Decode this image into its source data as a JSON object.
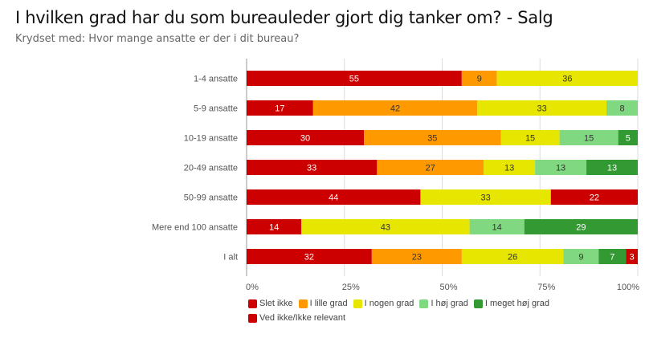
{
  "header": {
    "title": "I hvilken grad har du som bureauleder gjort dig tanker om? - Salg",
    "subtitle": "Krydset med: Hvor mange ansatte er der i dit bureau?"
  },
  "chart_data": {
    "type": "bar",
    "orientation": "horizontal",
    "stacked": true,
    "normalized_percent": true,
    "title": "I hvilken grad har du som bureauleder gjort dig tanker om? - Salg",
    "subtitle": "Krydset med: Hvor mange ansatte er der i dit bureau?",
    "xlabel": "",
    "ylabel": "",
    "xlim": [
      0,
      100
    ],
    "x_ticks": [
      "0%",
      "25%",
      "50%",
      "75%",
      "100%"
    ],
    "grid": true,
    "legend_position": "bottom",
    "categories": [
      "1-4 ansatte",
      "5-9 ansatte",
      "10-19 ansatte",
      "20-49 ansatte",
      "50-99 ansatte",
      "Mere end 100 ansatte",
      "I alt"
    ],
    "series": [
      {
        "name": "Slet ikke",
        "color": "#cc0000",
        "label_color": "#ffffff",
        "values": [
          55,
          17,
          30,
          33,
          44,
          14,
          32
        ]
      },
      {
        "name": "I lille grad",
        "color": "#ff9900",
        "label_color": "#333333",
        "values": [
          9,
          42,
          35,
          27,
          0,
          0,
          23
        ]
      },
      {
        "name": "I nogen grad",
        "color": "#e6e600",
        "label_color": "#333333",
        "values": [
          36,
          33,
          15,
          13,
          33,
          43,
          26
        ]
      },
      {
        "name": "I høj grad",
        "color": "#80d980",
        "label_color": "#333333",
        "values": [
          0,
          8,
          15,
          13,
          0,
          14,
          9
        ]
      },
      {
        "name": "I meget høj grad",
        "color": "#339933",
        "label_color": "#ffffff",
        "values": [
          0,
          0,
          5,
          13,
          0,
          29,
          7
        ]
      },
      {
        "name": "Ved ikke/Ikke relevant",
        "color": "#cc0000",
        "label_color": "#ffffff",
        "values": [
          0,
          0,
          0,
          0,
          22,
          0,
          3
        ]
      }
    ]
  }
}
